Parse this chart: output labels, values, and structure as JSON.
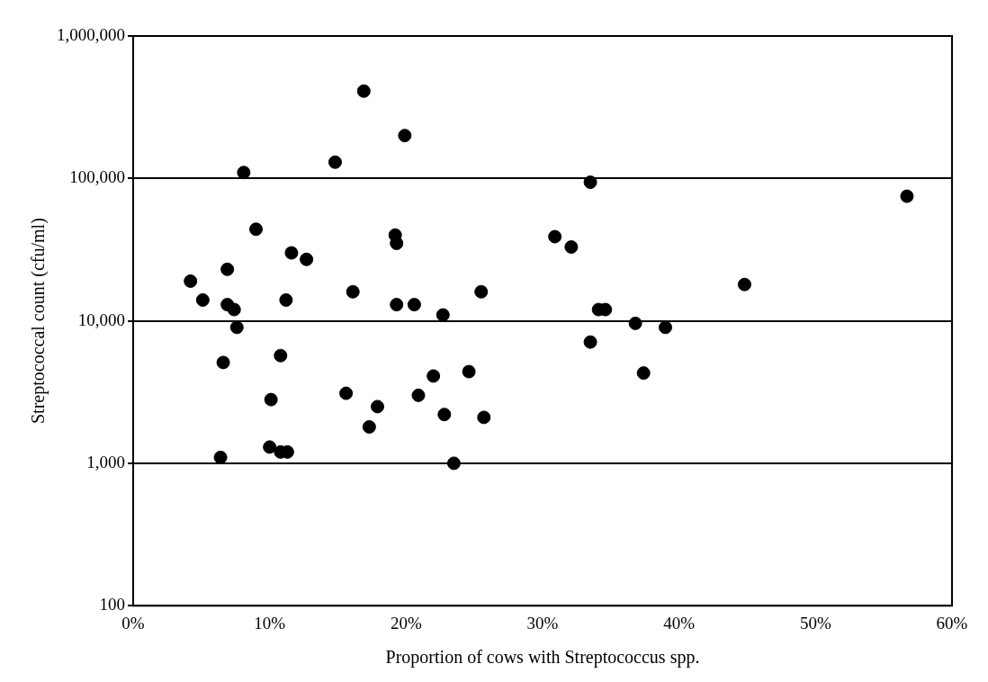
{
  "chart_data": {
    "type": "scatter",
    "xlabel": "Proportion of cows with Streptococcus spp.",
    "ylabel": "Streptococcal count (cfu/ml)",
    "x": [
      16.9,
      19.9,
      14.8,
      8.1,
      9.0,
      19.2,
      19.3,
      11.6,
      12.7,
      6.9,
      4.2,
      25.5,
      16.1,
      5.1,
      11.2,
      6.9,
      19.3,
      20.6,
      7.4,
      22.7,
      7.6,
      10.8,
      6.6,
      24.6,
      22.0,
      10.1,
      15.6,
      20.9,
      17.9,
      22.8,
      25.7,
      17.3,
      10.0,
      10.8,
      11.3,
      6.4,
      23.5,
      30.9,
      33.5,
      56.7,
      32.1,
      44.8,
      34.1,
      34.6,
      36.8,
      39.0,
      33.5,
      37.4
    ],
    "values": [
      410000,
      200000,
      130000,
      110000,
      44000,
      40000,
      35000,
      30000,
      27000,
      23000,
      19000,
      16000,
      16000,
      14000,
      14000,
      13000,
      13000,
      13000,
      12000,
      11000,
      9000,
      5700,
      5100,
      4400,
      4100,
      2800,
      3100,
      3000,
      2500,
      2200,
      2100,
      1800,
      1300,
      1200,
      1200,
      1100,
      1000,
      39000,
      94000,
      75000,
      33000,
      18000,
      12000,
      12000,
      9600,
      9000,
      7100,
      4300
    ],
    "color": "#000000",
    "marker": "circle",
    "log": "y",
    "grid": "y",
    "xlim": [
      0,
      60
    ],
    "xticks": [
      {
        "value": 0,
        "label": "0%"
      },
      {
        "value": 10,
        "label": "10%"
      },
      {
        "value": 20,
        "label": "20%"
      },
      {
        "value": 30,
        "label": "30%"
      },
      {
        "value": 40,
        "label": "40%"
      },
      {
        "value": 50,
        "label": "50%"
      },
      {
        "value": 60,
        "label": "60%"
      }
    ],
    "ylim": [
      100,
      1000000
    ],
    "yticks": [
      {
        "value": 100,
        "label": "100"
      },
      {
        "value": 1000,
        "label": "1,000"
      },
      {
        "value": 10000,
        "label": "10,000"
      },
      {
        "value": 100000,
        "label": "100,000"
      },
      {
        "value": 1000000,
        "label": "1,000,000"
      }
    ]
  }
}
